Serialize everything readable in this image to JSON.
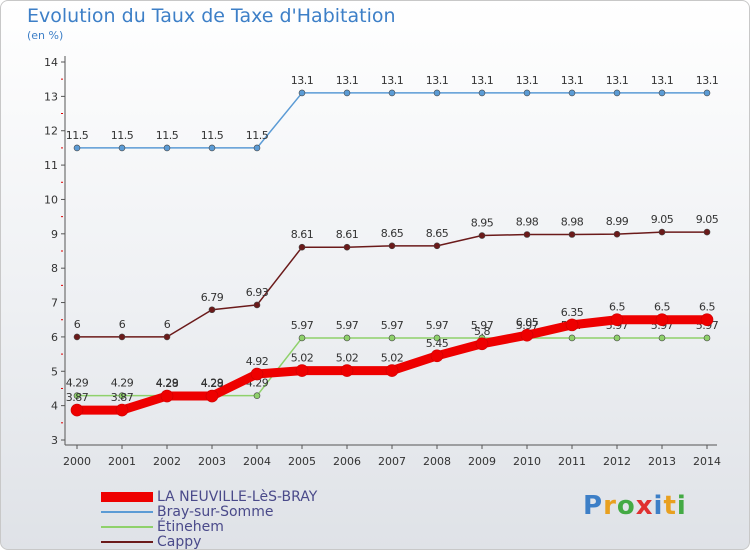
{
  "header": {
    "title": "Evolution du Taux de Taxe d'Habitation",
    "unit": "(en %)"
  },
  "brand": {
    "text": "Proxiti",
    "colors": [
      "#3d7fc7",
      "#e8a020",
      "#44aa44",
      "#e03030",
      "#3d7fc7",
      "#e8a020",
      "#44aa44"
    ]
  },
  "chart_data": {
    "type": "line",
    "x": [
      "2000",
      "2001",
      "2002",
      "2003",
      "2004",
      "2005",
      "2006",
      "2007",
      "2008",
      "2009",
      "2010",
      "2011",
      "2012",
      "2013",
      "2014"
    ],
    "ylim": [
      3,
      14
    ],
    "yticks": [
      "3",
      "4",
      "5",
      "6",
      "7",
      "8",
      "9",
      "10",
      "11",
      "12",
      "13",
      "14"
    ],
    "grid": false,
    "legend_position": "bottom-left",
    "series": [
      {
        "name": "Bray-sur-Somme",
        "color": "#5b9bd5",
        "values": [
          11.5,
          11.5,
          11.5,
          11.5,
          11.5,
          13.1,
          13.1,
          13.1,
          13.1,
          13.1,
          13.1,
          13.1,
          13.1,
          13.1,
          13.1
        ],
        "labels": [
          "11.5",
          "11.5",
          "11.5",
          "11.5",
          "11.5",
          "13.1",
          "13.1",
          "13.1",
          "13.1",
          "13.1",
          "13.1",
          "13.1",
          "13.1",
          "13.1",
          "13.1"
        ]
      },
      {
        "name": "Cappy",
        "color": "#6b1a1a",
        "values": [
          6,
          6,
          6,
          6.79,
          6.93,
          8.61,
          8.61,
          8.65,
          8.65,
          8.95,
          8.98,
          8.98,
          8.99,
          9.05,
          9.05
        ],
        "labels": [
          "6",
          "6",
          "6",
          "6.79",
          "6.93",
          "8.61",
          "8.61",
          "8.65",
          "8.65",
          "8.95",
          "8.98",
          "8.98",
          "8.99",
          "9.05",
          "9.05"
        ]
      },
      {
        "name": "Étinehem",
        "color": "#8fd16b",
        "values": [
          4.29,
          4.29,
          4.29,
          4.29,
          4.29,
          5.97,
          5.97,
          5.97,
          5.97,
          5.97,
          5.97,
          5.97,
          5.97,
          5.97,
          5.97
        ],
        "labels": [
          "4.29",
          "4.29",
          "4.29",
          "4.29",
          "4.29",
          "5.97",
          "5.97",
          "5.97",
          "5.97",
          "5.97",
          "5.97",
          "5.97",
          "5.97",
          "5.97",
          "5.97"
        ]
      },
      {
        "name": "LA NEUVILLE-LèS-BRAY",
        "color": "#ee0000",
        "values": [
          3.87,
          3.87,
          4.28,
          4.28,
          4.92,
          5.02,
          5.02,
          5.02,
          5.45,
          5.8,
          6.05,
          6.35,
          6.5,
          6.5,
          6.5
        ],
        "labels": [
          "3.87",
          "3.87",
          "4.28",
          "4.28",
          "4.92",
          "5.02",
          "5.02",
          "5.02",
          "5.45",
          "5.8",
          "6.05",
          "6.35",
          "6.5",
          "6.5",
          "6.5"
        ]
      }
    ],
    "legend": [
      "LA NEUVILLE-LèS-BRAY",
      "Bray-sur-Somme",
      "Étinehem",
      "Cappy"
    ]
  }
}
